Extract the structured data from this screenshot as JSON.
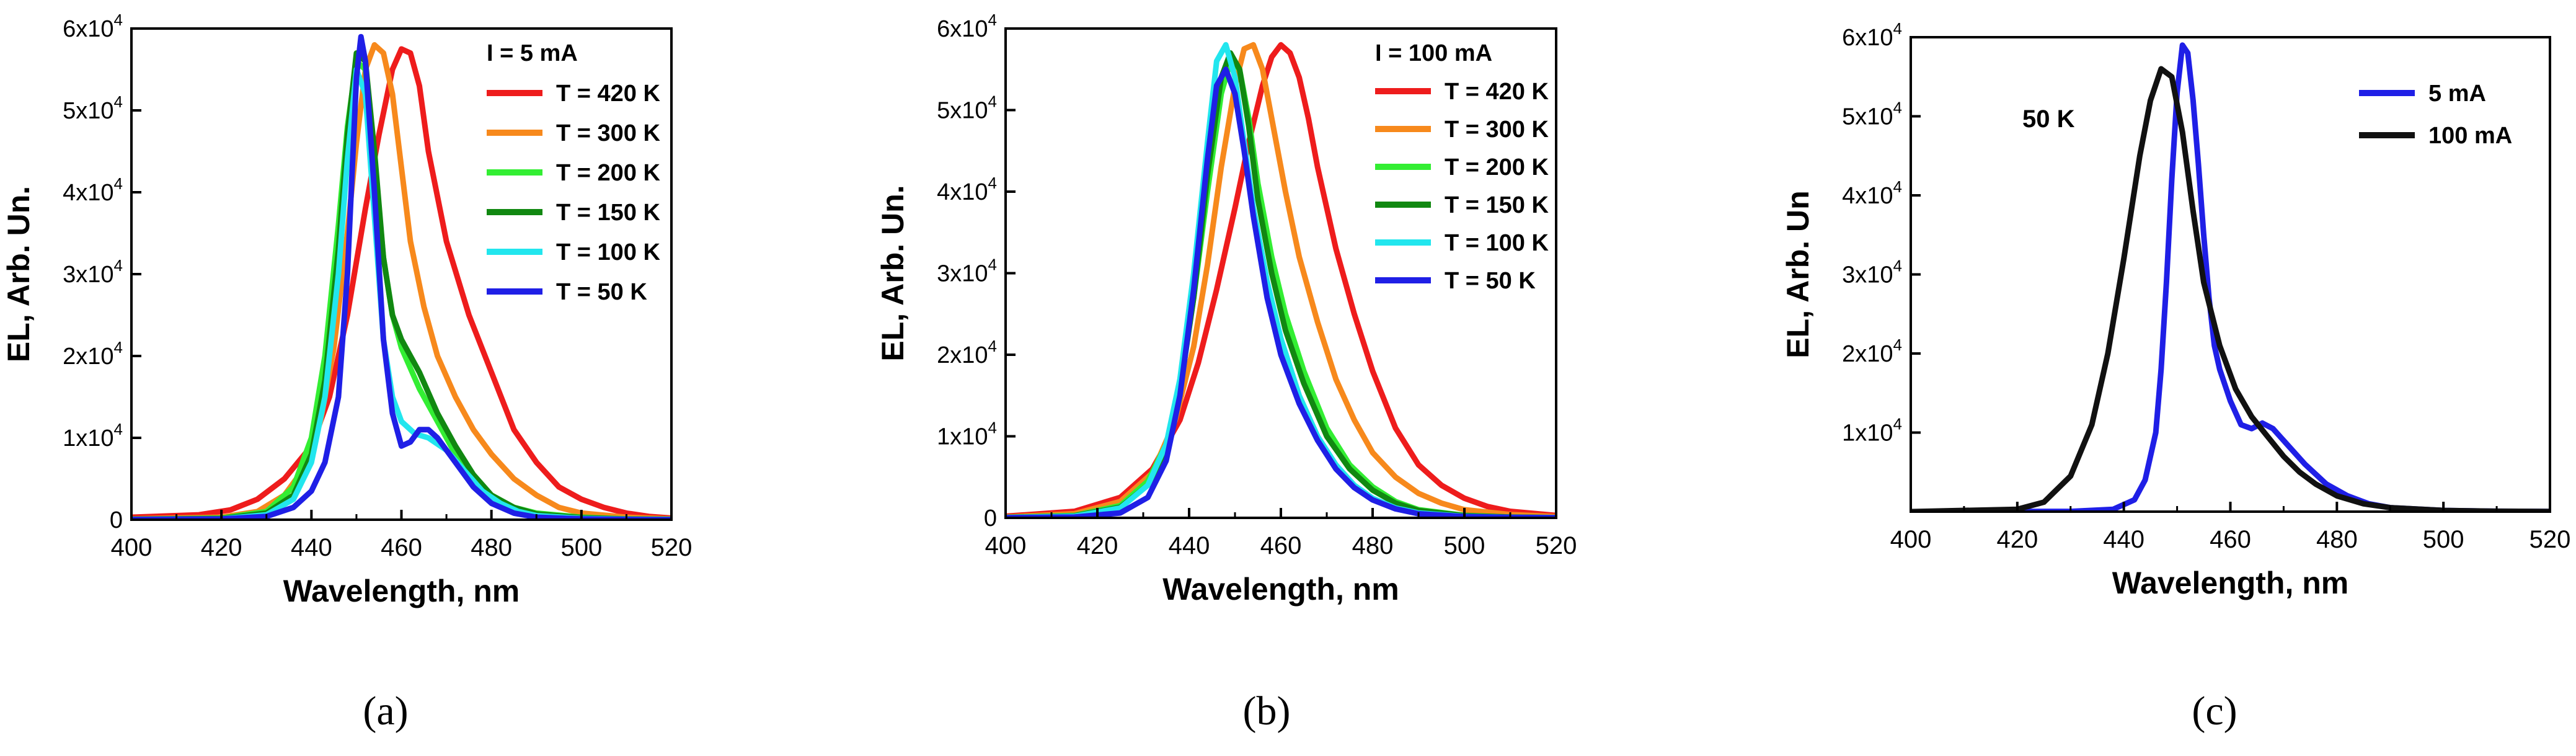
{
  "figure": {
    "panel_labels": [
      "(a)",
      "(b)",
      "(c)"
    ]
  },
  "chart_data": [
    {
      "type": "line",
      "panel": "(a)",
      "title": "",
      "xlabel": "Wavelength, nm",
      "ylabel": "EL, Arb. Un.",
      "xlim": [
        400,
        520
      ],
      "ylim": [
        0,
        60000
      ],
      "xticks": [
        400,
        420,
        440,
        460,
        480,
        500,
        520
      ],
      "yticks": [
        {
          "value": 0,
          "mant": "0",
          "exp": ""
        },
        {
          "value": 10000,
          "mant": "1x10",
          "exp": "4"
        },
        {
          "value": 20000,
          "mant": "2x10",
          "exp": "4"
        },
        {
          "value": 30000,
          "mant": "3x10",
          "exp": "4"
        },
        {
          "value": 40000,
          "mant": "4x10",
          "exp": "4"
        },
        {
          "value": 50000,
          "mant": "5x10",
          "exp": "4"
        },
        {
          "value": 60000,
          "mant": "6x10",
          "exp": "4"
        }
      ],
      "legend_position": "top-right",
      "legend_title": "I = 5 mA",
      "series": [
        {
          "name": "T = 420 K",
          "color": "#ee1c1c",
          "x": [
            400,
            415,
            422,
            428,
            434,
            440,
            444,
            448,
            452,
            455,
            458,
            460,
            462,
            464,
            466,
            470,
            475,
            480,
            485,
            490,
            495,
            500,
            505,
            510,
            515,
            520
          ],
          "values": [
            300,
            600,
            1200,
            2500,
            5000,
            9000,
            15000,
            25000,
            38000,
            47000,
            55000,
            57500,
            57000,
            53000,
            45000,
            34000,
            25000,
            18000,
            11000,
            7000,
            4000,
            2500,
            1500,
            800,
            400,
            200
          ]
        },
        {
          "name": "T = 300 K",
          "color": "#f7891c",
          "x": [
            400,
            420,
            428,
            434,
            438,
            442,
            445,
            448,
            450,
            452,
            454,
            456,
            458,
            460,
            462,
            465,
            468,
            472,
            476,
            480,
            485,
            490,
            495,
            500,
            510,
            520
          ],
          "values": [
            100,
            300,
            1000,
            3000,
            6000,
            12000,
            21000,
            35000,
            46000,
            55000,
            58000,
            57000,
            52000,
            43000,
            34000,
            26000,
            20000,
            15000,
            11000,
            8000,
            5000,
            3000,
            1500,
            800,
            300,
            100
          ]
        },
        {
          "name": "T = 200 K",
          "color": "#33ee33",
          "x": [
            400,
            420,
            430,
            436,
            440,
            443,
            446,
            448,
            450,
            452,
            454,
            456,
            458,
            460,
            464,
            468,
            472,
            476,
            480,
            485,
            490,
            500,
            510,
            520
          ],
          "values": [
            50,
            200,
            1000,
            4000,
            10000,
            20000,
            36000,
            48000,
            56000,
            55000,
            44000,
            32000,
            25000,
            21000,
            16000,
            12000,
            8000,
            5000,
            3000,
            1500,
            800,
            300,
            100,
            50
          ]
        },
        {
          "name": "T = 150 K",
          "color": "#118811",
          "x": [
            400,
            420,
            430,
            436,
            440,
            443,
            446,
            448,
            450,
            452,
            454,
            456,
            458,
            460,
            464,
            468,
            472,
            476,
            480,
            485,
            490,
            500,
            510,
            520
          ],
          "values": [
            50,
            150,
            800,
            3000,
            8000,
            17000,
            33000,
            47000,
            57000,
            56000,
            45000,
            32000,
            25000,
            22000,
            18000,
            13000,
            9000,
            5500,
            3000,
            1500,
            700,
            250,
            80,
            30
          ]
        },
        {
          "name": "T = 100 K",
          "color": "#22e6ee",
          "x": [
            400,
            420,
            430,
            436,
            440,
            443,
            446,
            448,
            450,
            452,
            454,
            456,
            458,
            460,
            463,
            466,
            470,
            474,
            478,
            482,
            486,
            490,
            500,
            510,
            520
          ],
          "values": [
            40,
            100,
            600,
            2500,
            7000,
            15000,
            30000,
            44000,
            55000,
            52000,
            37000,
            22000,
            15000,
            12000,
            10500,
            10000,
            8500,
            6000,
            3500,
            2000,
            1000,
            500,
            150,
            50,
            20
          ]
        },
        {
          "name": "T = 50 K",
          "color": "#1f1fe6",
          "x": [
            400,
            420,
            430,
            436,
            440,
            443,
            446,
            448,
            450,
            451,
            452,
            454,
            456,
            458,
            460,
            462,
            464,
            466,
            468,
            472,
            476,
            480,
            485,
            490,
            500,
            510,
            520
          ],
          "values": [
            30,
            80,
            400,
            1500,
            3500,
            7000,
            15000,
            30000,
            54000,
            59000,
            56000,
            40000,
            22000,
            13000,
            9000,
            9500,
            11000,
            11000,
            10000,
            7000,
            4000,
            2000,
            800,
            300,
            100,
            30,
            10
          ]
        }
      ]
    },
    {
      "type": "line",
      "panel": "(b)",
      "title": "",
      "xlabel": "Wavelength, nm",
      "ylabel": "EL, Arb. Un.",
      "xlim": [
        400,
        520
      ],
      "ylim": [
        0,
        60000
      ],
      "xticks": [
        400,
        420,
        440,
        460,
        480,
        500,
        520
      ],
      "yticks": [
        {
          "value": 0,
          "mant": "0",
          "exp": ""
        },
        {
          "value": 10000,
          "mant": "1x10",
          "exp": "4"
        },
        {
          "value": 20000,
          "mant": "2x10",
          "exp": "4"
        },
        {
          "value": 30000,
          "mant": "3x10",
          "exp": "4"
        },
        {
          "value": 40000,
          "mant": "4x10",
          "exp": "4"
        },
        {
          "value": 50000,
          "mant": "5x10",
          "exp": "4"
        },
        {
          "value": 60000,
          "mant": "6x10",
          "exp": "4"
        }
      ],
      "legend_position": "top-right",
      "legend_title": "I = 100 mA",
      "series": [
        {
          "name": "T = 420 K",
          "color": "#ee1c1c",
          "x": [
            400,
            415,
            425,
            432,
            438,
            442,
            446,
            450,
            453,
            456,
            458,
            460,
            462,
            464,
            466,
            468,
            472,
            476,
            480,
            485,
            490,
            495,
            500,
            505,
            510,
            520
          ],
          "values": [
            200,
            800,
            2500,
            6000,
            12000,
            19000,
            28000,
            38000,
            46000,
            53000,
            56500,
            58000,
            57000,
            54000,
            49000,
            43000,
            33000,
            25000,
            18000,
            11000,
            6500,
            4000,
            2400,
            1400,
            800,
            300
          ]
        },
        {
          "name": "T = 300 K",
          "color": "#f7891c",
          "x": [
            400,
            415,
            425,
            432,
            437,
            441,
            444,
            447,
            450,
            452,
            454,
            456,
            458,
            461,
            464,
            468,
            472,
            476,
            480,
            485,
            490,
            495,
            500,
            510,
            520
          ],
          "values": [
            100,
            500,
            2000,
            5500,
            12000,
            21000,
            31000,
            43000,
            53000,
            57500,
            58000,
            55000,
            49000,
            40000,
            32000,
            24000,
            17000,
            12000,
            8000,
            5000,
            3000,
            1800,
            1000,
            400,
            150
          ]
        },
        {
          "name": "T = 200 K",
          "color": "#33ee33",
          "x": [
            400,
            415,
            425,
            431,
            435,
            438,
            441,
            444,
            447,
            449,
            451,
            453,
            455,
            458,
            461,
            465,
            470,
            475,
            480,
            485,
            490,
            500,
            510,
            520
          ],
          "values": [
            50,
            300,
            1500,
            4500,
            9000,
            16000,
            27000,
            40000,
            52000,
            56000,
            55000,
            49000,
            41000,
            32000,
            25000,
            18000,
            11000,
            6500,
            3800,
            2000,
            1000,
            300,
            100,
            30
          ]
        },
        {
          "name": "T = 150 K",
          "color": "#118811",
          "x": [
            400,
            415,
            425,
            431,
            435,
            438,
            441,
            444,
            447,
            449,
            451,
            453,
            455,
            458,
            461,
            465,
            470,
            475,
            480,
            485,
            490,
            500,
            510,
            520
          ],
          "values": [
            40,
            250,
            1300,
            4000,
            8500,
            15500,
            27000,
            42000,
            54000,
            57000,
            55000,
            48000,
            39000,
            30000,
            23000,
            16500,
            10000,
            6000,
            3400,
            1800,
            900,
            280,
            90,
            30
          ]
        },
        {
          "name": "T = 100 K",
          "color": "#22e6ee",
          "x": [
            400,
            415,
            425,
            431,
            435,
            438,
            441,
            444,
            446,
            448,
            450,
            452,
            454,
            457,
            460,
            464,
            468,
            472,
            476,
            480,
            485,
            490,
            500,
            510,
            520
          ],
          "values": [
            30,
            200,
            1200,
            4000,
            9000,
            17000,
            30000,
            46000,
            56000,
            58000,
            54000,
            46000,
            38000,
            29000,
            22000,
            15000,
            10000,
            6500,
            4000,
            2400,
            1200,
            600,
            180,
            60,
            20
          ]
        },
        {
          "name": "T = 50 K",
          "color": "#1f1fe6",
          "x": [
            400,
            415,
            425,
            431,
            435,
            438,
            441,
            444,
            446,
            448,
            450,
            452,
            454,
            457,
            460,
            464,
            468,
            472,
            476,
            480,
            485,
            490,
            500,
            510,
            520
          ],
          "values": [
            20,
            100,
            600,
            2500,
            7000,
            15000,
            28000,
            44000,
            53000,
            55000,
            52000,
            45000,
            37000,
            27000,
            20000,
            14000,
            9500,
            6000,
            3700,
            2200,
            1100,
            500,
            150,
            50,
            20
          ]
        }
      ]
    },
    {
      "type": "line",
      "panel": "(c)",
      "title": "",
      "xlabel": "Wavelength, nm",
      "ylabel": "EL, Arb. Un",
      "xlim": [
        400,
        520
      ],
      "ylim": [
        0,
        60000
      ],
      "xticks": [
        400,
        420,
        440,
        460,
        480,
        500,
        520
      ],
      "yticks": [
        {
          "value": 10000,
          "mant": "1x10",
          "exp": "4"
        },
        {
          "value": 20000,
          "mant": "2x10",
          "exp": "4"
        },
        {
          "value": 30000,
          "mant": "3x10",
          "exp": "4"
        },
        {
          "value": 40000,
          "mant": "4x10",
          "exp": "4"
        },
        {
          "value": 50000,
          "mant": "5x10",
          "exp": "4"
        },
        {
          "value": 60000,
          "mant": "6x10",
          "exp": "4"
        }
      ],
      "legend_position": "top-right",
      "legend_title": "",
      "annotation": "50 K",
      "series": [
        {
          "name": "5 mA",
          "color": "#1f1fe6",
          "x": [
            400,
            430,
            438,
            442,
            444,
            446,
            447,
            448,
            449,
            450,
            451,
            452,
            453,
            454,
            455,
            456,
            457,
            458,
            460,
            462,
            464,
            466,
            468,
            470,
            474,
            478,
            482,
            486,
            490,
            500,
            510,
            520
          ],
          "values": [
            0,
            30,
            300,
            1500,
            4000,
            10000,
            18000,
            29000,
            42000,
            53000,
            59000,
            58000,
            52000,
            44000,
            35000,
            27000,
            21000,
            18000,
            14000,
            11000,
            10500,
            11200,
            10500,
            9000,
            6000,
            3500,
            2000,
            1000,
            500,
            150,
            50,
            20
          ]
        },
        {
          "name": "100 mA",
          "color": "#111111",
          "x": [
            400,
            420,
            425,
            430,
            434,
            437,
            440,
            443,
            445,
            447,
            449,
            451,
            453,
            455,
            458,
            461,
            464,
            467,
            470,
            473,
            476,
            480,
            485,
            490,
            500,
            510,
            520
          ],
          "values": [
            0,
            300,
            1200,
            4500,
            11000,
            20000,
            32000,
            45000,
            52000,
            56000,
            55000,
            48000,
            38000,
            29000,
            21000,
            15500,
            12000,
            9500,
            7000,
            5000,
            3500,
            2000,
            1000,
            500,
            150,
            50,
            20
          ]
        }
      ]
    }
  ]
}
